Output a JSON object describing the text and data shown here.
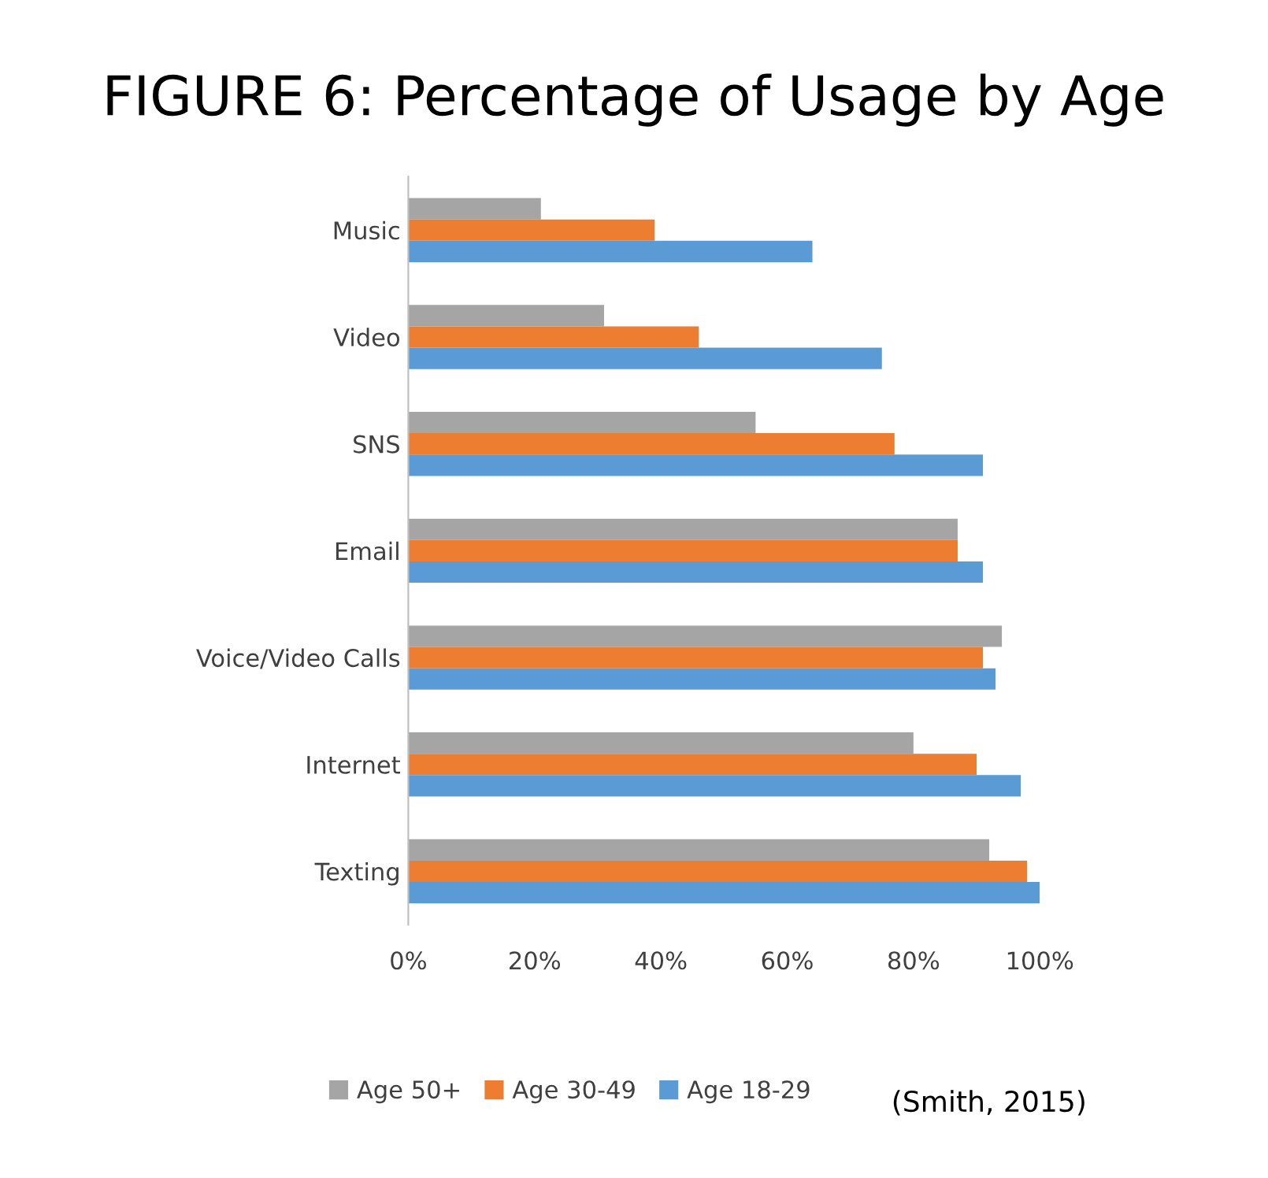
{
  "chart_data": {
    "type": "bar",
    "orientation": "horizontal",
    "title": "FIGURE 6: Percentage of Usage by Age",
    "categories": [
      "Music",
      "Video",
      "SNS",
      "Email",
      "Voice/Video Calls",
      "Internet",
      "Texting"
    ],
    "series": [
      {
        "name": "Age 50+",
        "color": "#a5a5a5",
        "values": [
          21,
          31,
          55,
          87,
          94,
          80,
          92
        ]
      },
      {
        "name": "Age 30-49",
        "color": "#ed7d31",
        "values": [
          39,
          46,
          77,
          87,
          91,
          90,
          98
        ]
      },
      {
        "name": "Age 18-29",
        "color": "#5b9bd5",
        "values": [
          64,
          75,
          91,
          91,
          93,
          97,
          100
        ]
      }
    ],
    "xlim": [
      0,
      100
    ],
    "xticks": [
      {
        "value": 0,
        "label": "0%"
      },
      {
        "value": 20,
        "label": "20%"
      },
      {
        "value": 40,
        "label": "40%"
      },
      {
        "value": 60,
        "label": "60%"
      },
      {
        "value": 80,
        "label": "80%"
      },
      {
        "value": 100,
        "label": "100%"
      }
    ],
    "grid": false,
    "legend": "bottom",
    "annotations": [
      "(Smith, 2015)"
    ]
  }
}
